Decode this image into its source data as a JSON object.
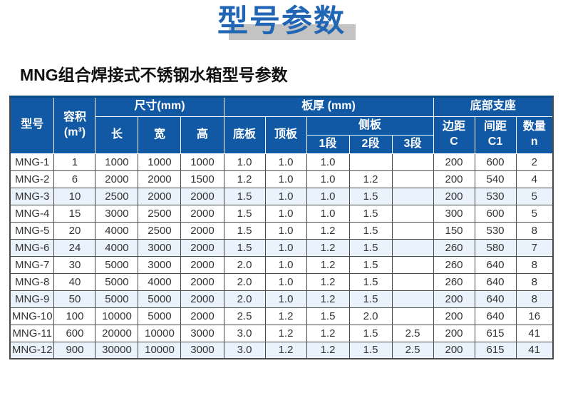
{
  "page": {
    "title": "型号参数",
    "subtitle": "MNG组合焊接式不锈钢水箱型号参数"
  },
  "colors": {
    "title_blue": "#2166b5",
    "title_shadow_gray": "#c3c3c3",
    "header_blue": "#1159a5",
    "header_top_accent": "#0d4b86",
    "stripe_light_blue": "#eaf3fb",
    "grid_line": "#4a4a4a",
    "cell_text": "#333333"
  },
  "table": {
    "header": {
      "model": "型号",
      "volume_line1": "容积",
      "volume_line2": "(m³)",
      "dimensions": "尺寸(mm)",
      "length": "长",
      "width": "宽",
      "height": "高",
      "thickness": "板厚 (mm)",
      "bottom_plate": "底板",
      "top_plate": "顶板",
      "side_plate": "侧板",
      "seg1": "1段",
      "seg2": "2段",
      "seg3": "3段",
      "support": "底部支座",
      "edge_line1": "边距",
      "edge_line2": "C",
      "spacing_line1": "间距",
      "spacing_line2": "C1",
      "qty_line1": "数量",
      "qty_line2": "n"
    },
    "rows": [
      {
        "model": "MNG-1",
        "volume": "1",
        "length": "1000",
        "width": "1000",
        "height": "1000",
        "bottom_plate": "1.0",
        "top_plate": "1.0",
        "seg1": "1.0",
        "seg2": "",
        "seg3": "",
        "edge_c": "200",
        "spacing_c1": "600",
        "qty": "2"
      },
      {
        "model": "MNG-2",
        "volume": "6",
        "length": "2000",
        "width": "2000",
        "height": "1500",
        "bottom_plate": "1.2",
        "top_plate": "1.0",
        "seg1": "1.0",
        "seg2": "1.2",
        "seg3": "",
        "edge_c": "200",
        "spacing_c1": "540",
        "qty": "4"
      },
      {
        "model": "MNG-3",
        "volume": "10",
        "length": "2500",
        "width": "2000",
        "height": "2000",
        "bottom_plate": "1.5",
        "top_plate": "1.0",
        "seg1": "1.0",
        "seg2": "1.5",
        "seg3": "",
        "edge_c": "200",
        "spacing_c1": "530",
        "qty": "5"
      },
      {
        "model": "MNG-4",
        "volume": "15",
        "length": "3000",
        "width": "2500",
        "height": "2000",
        "bottom_plate": "1.5",
        "top_plate": "1.0",
        "seg1": "1.0",
        "seg2": "1.5",
        "seg3": "",
        "edge_c": "300",
        "spacing_c1": "600",
        "qty": "5"
      },
      {
        "model": "MNG-5",
        "volume": "20",
        "length": "4000",
        "width": "2500",
        "height": "2000",
        "bottom_plate": "1.5",
        "top_plate": "1.0",
        "seg1": "1.2",
        "seg2": "1.5",
        "seg3": "",
        "edge_c": "150",
        "spacing_c1": "530",
        "qty": "8"
      },
      {
        "model": "MNG-6",
        "volume": "24",
        "length": "4000",
        "width": "3000",
        "height": "2000",
        "bottom_plate": "1.5",
        "top_plate": "1.0",
        "seg1": "1.2",
        "seg2": "1.5",
        "seg3": "",
        "edge_c": "260",
        "spacing_c1": "580",
        "qty": "7"
      },
      {
        "model": "MNG-7",
        "volume": "30",
        "length": "5000",
        "width": "3000",
        "height": "2000",
        "bottom_plate": "2.0",
        "top_plate": "1.0",
        "seg1": "1.2",
        "seg2": "1.5",
        "seg3": "",
        "edge_c": "260",
        "spacing_c1": "640",
        "qty": "8"
      },
      {
        "model": "MNG-8",
        "volume": "40",
        "length": "5000",
        "width": "4000",
        "height": "2000",
        "bottom_plate": "2.0",
        "top_plate": "1.0",
        "seg1": "1.2",
        "seg2": "1.5",
        "seg3": "",
        "edge_c": "260",
        "spacing_c1": "640",
        "qty": "8"
      },
      {
        "model": "MNG-9",
        "volume": "50",
        "length": "5000",
        "width": "5000",
        "height": "2000",
        "bottom_plate": "2.0",
        "top_plate": "1.0",
        "seg1": "1.2",
        "seg2": "1.5",
        "seg3": "",
        "edge_c": "200",
        "spacing_c1": "640",
        "qty": "8"
      },
      {
        "model": "MNG-10",
        "volume": "100",
        "length": "10000",
        "width": "5000",
        "height": "2000",
        "bottom_plate": "2.5",
        "top_plate": "1.2",
        "seg1": "1.5",
        "seg2": "2.0",
        "seg3": "",
        "edge_c": "200",
        "spacing_c1": "640",
        "qty": "16"
      },
      {
        "model": "MNG-11",
        "volume": "600",
        "length": "20000",
        "width": "10000",
        "height": "3000",
        "bottom_plate": "3.0",
        "top_plate": "1.2",
        "seg1": "1.2",
        "seg2": "1.5",
        "seg3": "2.5",
        "edge_c": "200",
        "spacing_c1": "615",
        "qty": "41"
      },
      {
        "model": "MNG-12",
        "volume": "900",
        "length": "30000",
        "width": "10000",
        "height": "3000",
        "bottom_plate": "3.0",
        "top_plate": "1.2",
        "seg1": "1.2",
        "seg2": "1.5",
        "seg3": "2.5",
        "edge_c": "200",
        "spacing_c1": "615",
        "qty": "41"
      }
    ]
  }
}
